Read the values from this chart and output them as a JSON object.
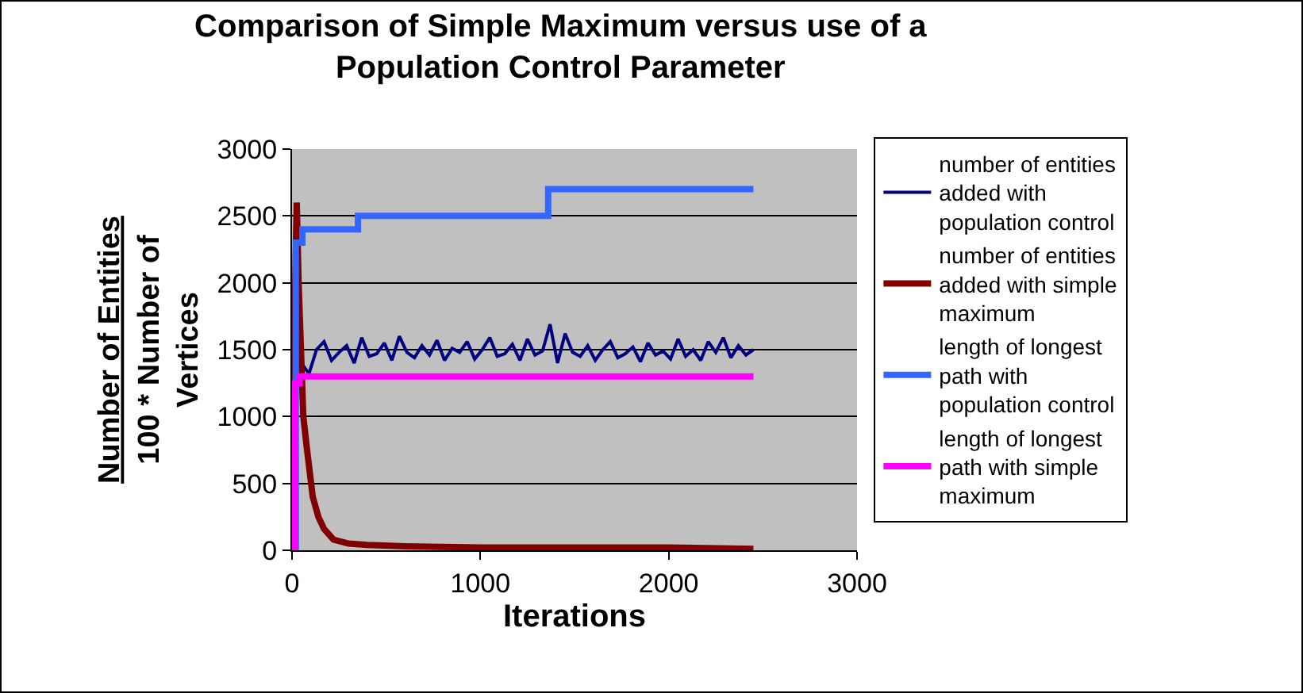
{
  "chart_data": {
    "type": "line",
    "title": "Comparison of Simple Maximum versus use of a Population Control Parameter",
    "xlabel": "Iterations",
    "ylabel": "Number of Entities\n100 * Number of Vertices",
    "xlim": [
      0,
      3000
    ],
    "xticks": [
      0,
      1000,
      2000,
      3000
    ],
    "ylim": [
      0,
      3000
    ],
    "yticks": [
      0,
      500,
      1000,
      1500,
      2000,
      2500,
      3000
    ],
    "grid": "y",
    "legend": "right",
    "marker": "none",
    "line_style": "solid",
    "series": [
      {
        "name": "number of entities added with population control",
        "color": "#000080",
        "x": [
          50,
          90,
          130,
          170,
          210,
          250,
          290,
          330,
          370,
          410,
          450,
          490,
          530,
          570,
          610,
          650,
          690,
          730,
          770,
          810,
          850,
          890,
          930,
          970,
          1010,
          1050,
          1090,
          1130,
          1170,
          1210,
          1250,
          1290,
          1330,
          1370,
          1410,
          1450,
          1490,
          1530,
          1570,
          1610,
          1650,
          1690,
          1730,
          1770,
          1810,
          1850,
          1890,
          1930,
          1970,
          2010,
          2050,
          2090,
          2130,
          2170,
          2210,
          2250,
          2290,
          2330,
          2370,
          2410,
          2450
        ],
        "values": [
          1400,
          1320,
          1500,
          1560,
          1420,
          1480,
          1530,
          1400,
          1590,
          1450,
          1470,
          1550,
          1420,
          1600,
          1480,
          1440,
          1530,
          1460,
          1570,
          1420,
          1510,
          1480,
          1560,
          1430,
          1500,
          1590,
          1450,
          1470,
          1540,
          1420,
          1580,
          1460,
          1490,
          1690,
          1400,
          1620,
          1480,
          1450,
          1530,
          1420,
          1500,
          1560,
          1440,
          1470,
          1520,
          1410,
          1550,
          1460,
          1490,
          1430,
          1580,
          1450,
          1500,
          1420,
          1560,
          1480,
          1590,
          1440,
          1530,
          1460,
          1500
        ]
      },
      {
        "name": "number of entities added with simple maximum",
        "color": "#800000",
        "x": [
          0,
          10,
          25,
          35,
          60,
          80,
          110,
          140,
          170,
          220,
          300,
          400,
          600,
          1000,
          1500,
          2000,
          2450
        ],
        "values": [
          0,
          1500,
          2600,
          2000,
          1000,
          750,
          400,
          250,
          160,
          80,
          50,
          40,
          30,
          20,
          20,
          20,
          10
        ]
      },
      {
        "name": "length of longest path with population control",
        "color": "#3366ff",
        "type": "step",
        "x": [
          0,
          20,
          55,
          350,
          1360,
          2450
        ],
        "values": [
          0,
          2300,
          2400,
          2500,
          2700,
          2700
        ]
      },
      {
        "name": "length of longest path with simple maximum",
        "color": "#ff00ff",
        "type": "step",
        "x": [
          0,
          15,
          40,
          2450
        ],
        "values": [
          0,
          1250,
          1300,
          1300
        ]
      }
    ]
  }
}
